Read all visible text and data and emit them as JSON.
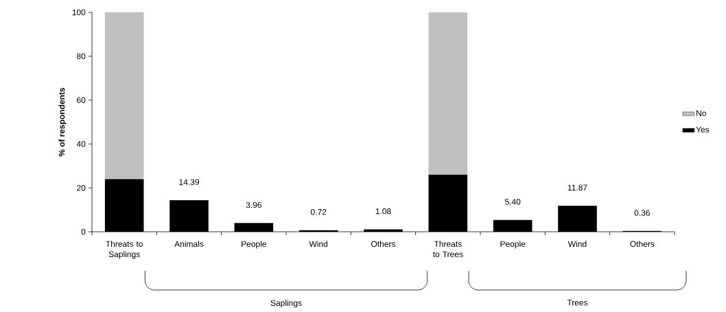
{
  "chart_data": {
    "type": "bar",
    "stacked": true,
    "ylabel": "% of respondents",
    "categories": [
      "Threats to Saplings",
      "Animals",
      "People",
      "Wind",
      "Others",
      "Threats to Trees",
      "People",
      "Wind",
      "Others"
    ],
    "series": [
      {
        "name": "Yes",
        "color": "#000000",
        "values": [
          24,
          14.39,
          3.96,
          0.72,
          1.08,
          26,
          5.4,
          11.87,
          0.36
        ],
        "value_labels": [
          null,
          "14.39",
          "3.96",
          "0.72",
          "1.08",
          null,
          "5.40",
          "11.87",
          "0.36"
        ]
      },
      {
        "name": "No",
        "color": "#c0c0c0",
        "values": [
          76,
          null,
          null,
          null,
          null,
          74,
          null,
          null,
          null
        ]
      }
    ],
    "ylim": [
      0,
      100
    ],
    "yticks": [
      0,
      20,
      40,
      60,
      80,
      100
    ],
    "legend": "right",
    "annotations": [
      "Saplings",
      "Trees"
    ]
  }
}
